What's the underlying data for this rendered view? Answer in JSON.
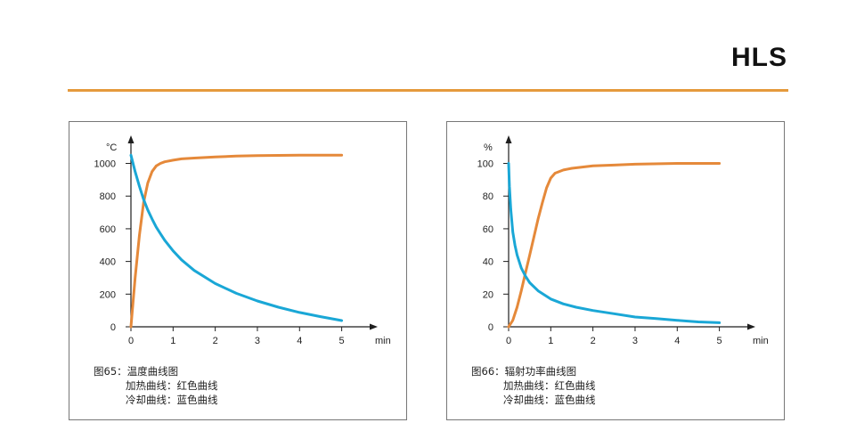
{
  "brand": "HLS",
  "colors": {
    "rule": "#E59A3C",
    "heating": "#E5893A",
    "cooling": "#1AA7D6",
    "axis": "#1f1f1f"
  },
  "chart_data": [
    {
      "type": "line",
      "y_unit_label": "°C",
      "x_unit_label": "min",
      "x_ticks": [
        "0",
        "1",
        "2",
        "3",
        "4",
        "5"
      ],
      "y_ticks": [
        "0",
        "200",
        "400",
        "600",
        "800",
        "1000"
      ],
      "xlim": [
        0,
        5.6
      ],
      "ylim": [
        0,
        1150
      ],
      "caption": {
        "title": "图65：温度曲线图",
        "line1": "加热曲线：红色曲线",
        "line2": "冷却曲线：蓝色曲线"
      },
      "series": [
        {
          "key": "heating",
          "x": [
            0,
            0.1,
            0.2,
            0.3,
            0.4,
            0.5,
            0.6,
            0.7,
            0.8,
            1.0,
            1.2,
            1.5,
            2.0,
            2.5,
            3.0,
            3.5,
            4.0,
            4.5,
            5.0
          ],
          "y": [
            0,
            300,
            560,
            760,
            880,
            950,
            985,
            1000,
            1010,
            1020,
            1028,
            1033,
            1040,
            1045,
            1048,
            1049,
            1050,
            1050,
            1050
          ]
        },
        {
          "key": "cooling",
          "x": [
            0,
            0.1,
            0.2,
            0.3,
            0.4,
            0.5,
            0.6,
            0.7,
            0.8,
            1.0,
            1.2,
            1.5,
            2.0,
            2.5,
            3.0,
            3.5,
            4.0,
            4.5,
            5.0
          ],
          "y": [
            1050,
            950,
            860,
            780,
            715,
            660,
            610,
            570,
            530,
            465,
            410,
            345,
            265,
            205,
            158,
            120,
            88,
            62,
            38
          ]
        }
      ]
    },
    {
      "type": "line",
      "y_unit_label": "%",
      "x_unit_label": "min",
      "x_ticks": [
        "0",
        "1",
        "2",
        "3",
        "4",
        "5"
      ],
      "y_ticks": [
        "0",
        "20",
        "40",
        "60",
        "80",
        "100"
      ],
      "xlim": [
        0,
        5.6
      ],
      "ylim": [
        0,
        115
      ],
      "caption": {
        "title": "图66：辐射功率曲线图",
        "line1": "加热曲线：红色曲线",
        "line2": "冷却曲线：蓝色曲线"
      },
      "series": [
        {
          "key": "heating",
          "x": [
            0,
            0.1,
            0.2,
            0.3,
            0.4,
            0.5,
            0.6,
            0.7,
            0.8,
            0.9,
            1.0,
            1.1,
            1.3,
            1.5,
            2.0,
            2.5,
            3.0,
            4.0,
            5.0
          ],
          "y": [
            0,
            4,
            12,
            22,
            33,
            44,
            55,
            66,
            76,
            85,
            91,
            94,
            96,
            97,
            98.5,
            99,
            99.5,
            100,
            100
          ]
        },
        {
          "key": "cooling",
          "x": [
            0,
            0.02,
            0.05,
            0.1,
            0.15,
            0.2,
            0.3,
            0.4,
            0.5,
            0.7,
            1.0,
            1.3,
            1.6,
            2.0,
            2.5,
            3.0,
            3.5,
            4.0,
            4.5,
            5.0
          ],
          "y": [
            100,
            86,
            72,
            58,
            50,
            44,
            36,
            31,
            27,
            22,
            17,
            14,
            12,
            10,
            8,
            6,
            5,
            4,
            3,
            2.5
          ]
        }
      ]
    }
  ]
}
